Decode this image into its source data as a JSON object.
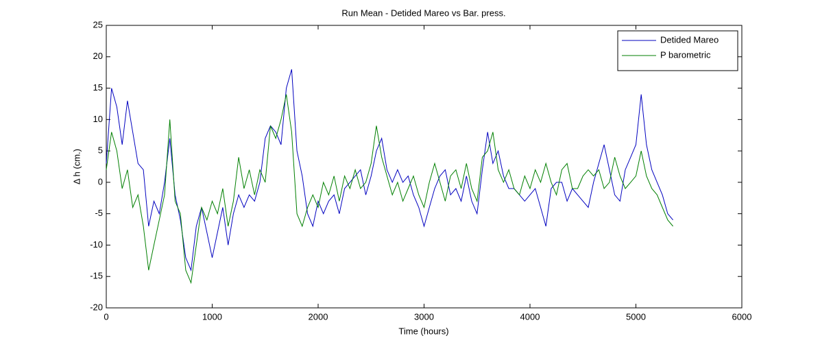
{
  "chart_data": {
    "type": "line",
    "title": "Run Mean - Detided Mareo vs Bar. press.",
    "x_label": "Time (hours)",
    "y_label": "Δ h (cm.)",
    "x": [
      0,
      50,
      100,
      150,
      200,
      250,
      300,
      350,
      400,
      450,
      500,
      550,
      600,
      650,
      700,
      750,
      800,
      850,
      900,
      950,
      1000,
      1050,
      1100,
      1150,
      1200,
      1250,
      1300,
      1350,
      1400,
      1450,
      1500,
      1550,
      1600,
      1650,
      1700,
      1750,
      1800,
      1850,
      1900,
      1950,
      2000,
      2050,
      2100,
      2150,
      2200,
      2250,
      2300,
      2350,
      2400,
      2450,
      2500,
      2550,
      2600,
      2650,
      2700,
      2750,
      2800,
      2850,
      2900,
      2950,
      3000,
      3050,
      3100,
      3150,
      3200,
      3250,
      3300,
      3350,
      3400,
      3450,
      3500,
      3550,
      3600,
      3650,
      3700,
      3750,
      3800,
      3850,
      3900,
      3950,
      4000,
      4050,
      4100,
      4150,
      4200,
      4250,
      4300,
      4350,
      4400,
      4450,
      4500,
      4550,
      4600,
      4650,
      4700,
      4750,
      4800,
      4850,
      4900,
      4950,
      5000,
      5050,
      5100,
      5150,
      5200,
      5250,
      5300,
      5350
    ],
    "series": [
      {
        "name": "Detided Mareo",
        "color": "#0000bf",
        "values": [
          3,
          15,
          12,
          6,
          13,
          8,
          3,
          2,
          -7,
          -3,
          -5,
          0,
          7,
          -2,
          -6,
          -12,
          -14,
          -7,
          -4,
          -8,
          -12,
          -8,
          -4,
          -10,
          -5,
          -2,
          -4,
          -2,
          -3,
          0,
          7,
          9,
          8,
          6,
          15,
          18,
          5,
          1,
          -5,
          -7,
          -3,
          -5,
          -3,
          -2,
          -5,
          -1,
          0,
          1,
          2,
          -2,
          1,
          5,
          7,
          2,
          0,
          2,
          0,
          1,
          -2,
          -4,
          -7,
          -4,
          -1,
          1,
          2,
          -2,
          -1,
          -3,
          1,
          -3,
          -5,
          2,
          8,
          3,
          5,
          1,
          -1,
          -1,
          -2,
          -3,
          -2,
          -1,
          -4,
          -7,
          -1,
          0,
          0,
          -3,
          -1,
          -2,
          -3,
          -4,
          0,
          3,
          6,
          2,
          -2,
          -3,
          2,
          4,
          6,
          14,
          6,
          2,
          0,
          -2,
          -5,
          -6
        ]
      },
      {
        "name": "P barometric",
        "color": "#007f00",
        "values": [
          2,
          8,
          5,
          -1,
          2,
          -4,
          -2,
          -7,
          -14,
          -10,
          -6,
          -2,
          10,
          -3,
          -5,
          -14,
          -16,
          -10,
          -4,
          -6,
          -3,
          -5,
          -1,
          -7,
          -3,
          4,
          -1,
          2,
          -2,
          2,
          0,
          9,
          7,
          10,
          14,
          8,
          -5,
          -7,
          -4,
          -2,
          -4,
          0,
          -2,
          1,
          -3,
          1,
          -1,
          2,
          -1,
          0,
          3,
          9,
          4,
          1,
          -2,
          0,
          -3,
          -1,
          1,
          -2,
          -4,
          0,
          3,
          0,
          -3,
          1,
          2,
          -1,
          3,
          -1,
          -3,
          4,
          5,
          8,
          2,
          0,
          2,
          -1,
          -2,
          1,
          -1,
          2,
          0,
          3,
          0,
          -2,
          2,
          3,
          -1,
          -1,
          1,
          2,
          1,
          2,
          -1,
          0,
          4,
          1,
          -1,
          0,
          1,
          5,
          1,
          -1,
          -2,
          -4,
          -6,
          -7
        ]
      }
    ],
    "xlim": [
      0,
      6000
    ],
    "xticks": [
      0,
      1000,
      2000,
      3000,
      4000,
      5000,
      6000
    ],
    "ylim": [
      -20,
      25
    ],
    "yticks": [
      -20,
      -15,
      -10,
      -5,
      0,
      5,
      10,
      15,
      20,
      25
    ],
    "legend": "upper right"
  }
}
